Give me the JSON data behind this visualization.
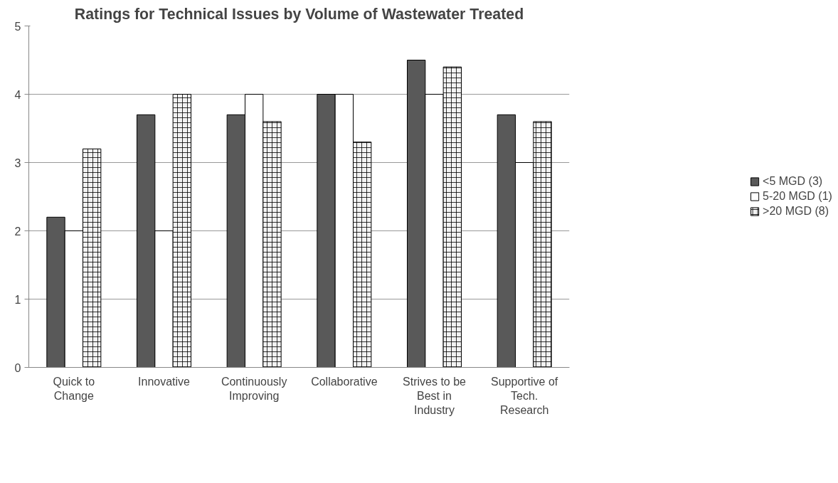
{
  "chart_data": {
    "type": "bar",
    "title": "Ratings for Technical Issues by Volume of Wastewater Treated",
    "categories": [
      "Quick to\nChange",
      "Innovative",
      "Continuously\nImproving",
      "Collaborative",
      "Strives to be\nBest in\nIndustry",
      "Supportive of\nTech.\nResearch"
    ],
    "series": [
      {
        "name": "<5 MGD (3)",
        "color": "#595959",
        "values": [
          2.2,
          3.7,
          3.7,
          4.0,
          4.5,
          3.7
        ]
      },
      {
        "name": "5-20 MGD (1)",
        "color": "#ffffff",
        "values": [
          2.0,
          2.0,
          4.0,
          4.0,
          4.0,
          3.0
        ]
      },
      {
        "name": ">20 MGD (8)",
        "color": "#f2f2f2",
        "values": [
          3.2,
          4.0,
          3.6,
          3.3,
          4.4,
          3.6
        ]
      }
    ],
    "ylim": [
      0,
      5
    ],
    "yticks": [
      0,
      1,
      2,
      3,
      4,
      5
    ],
    "grid": "y",
    "legend": "right"
  }
}
